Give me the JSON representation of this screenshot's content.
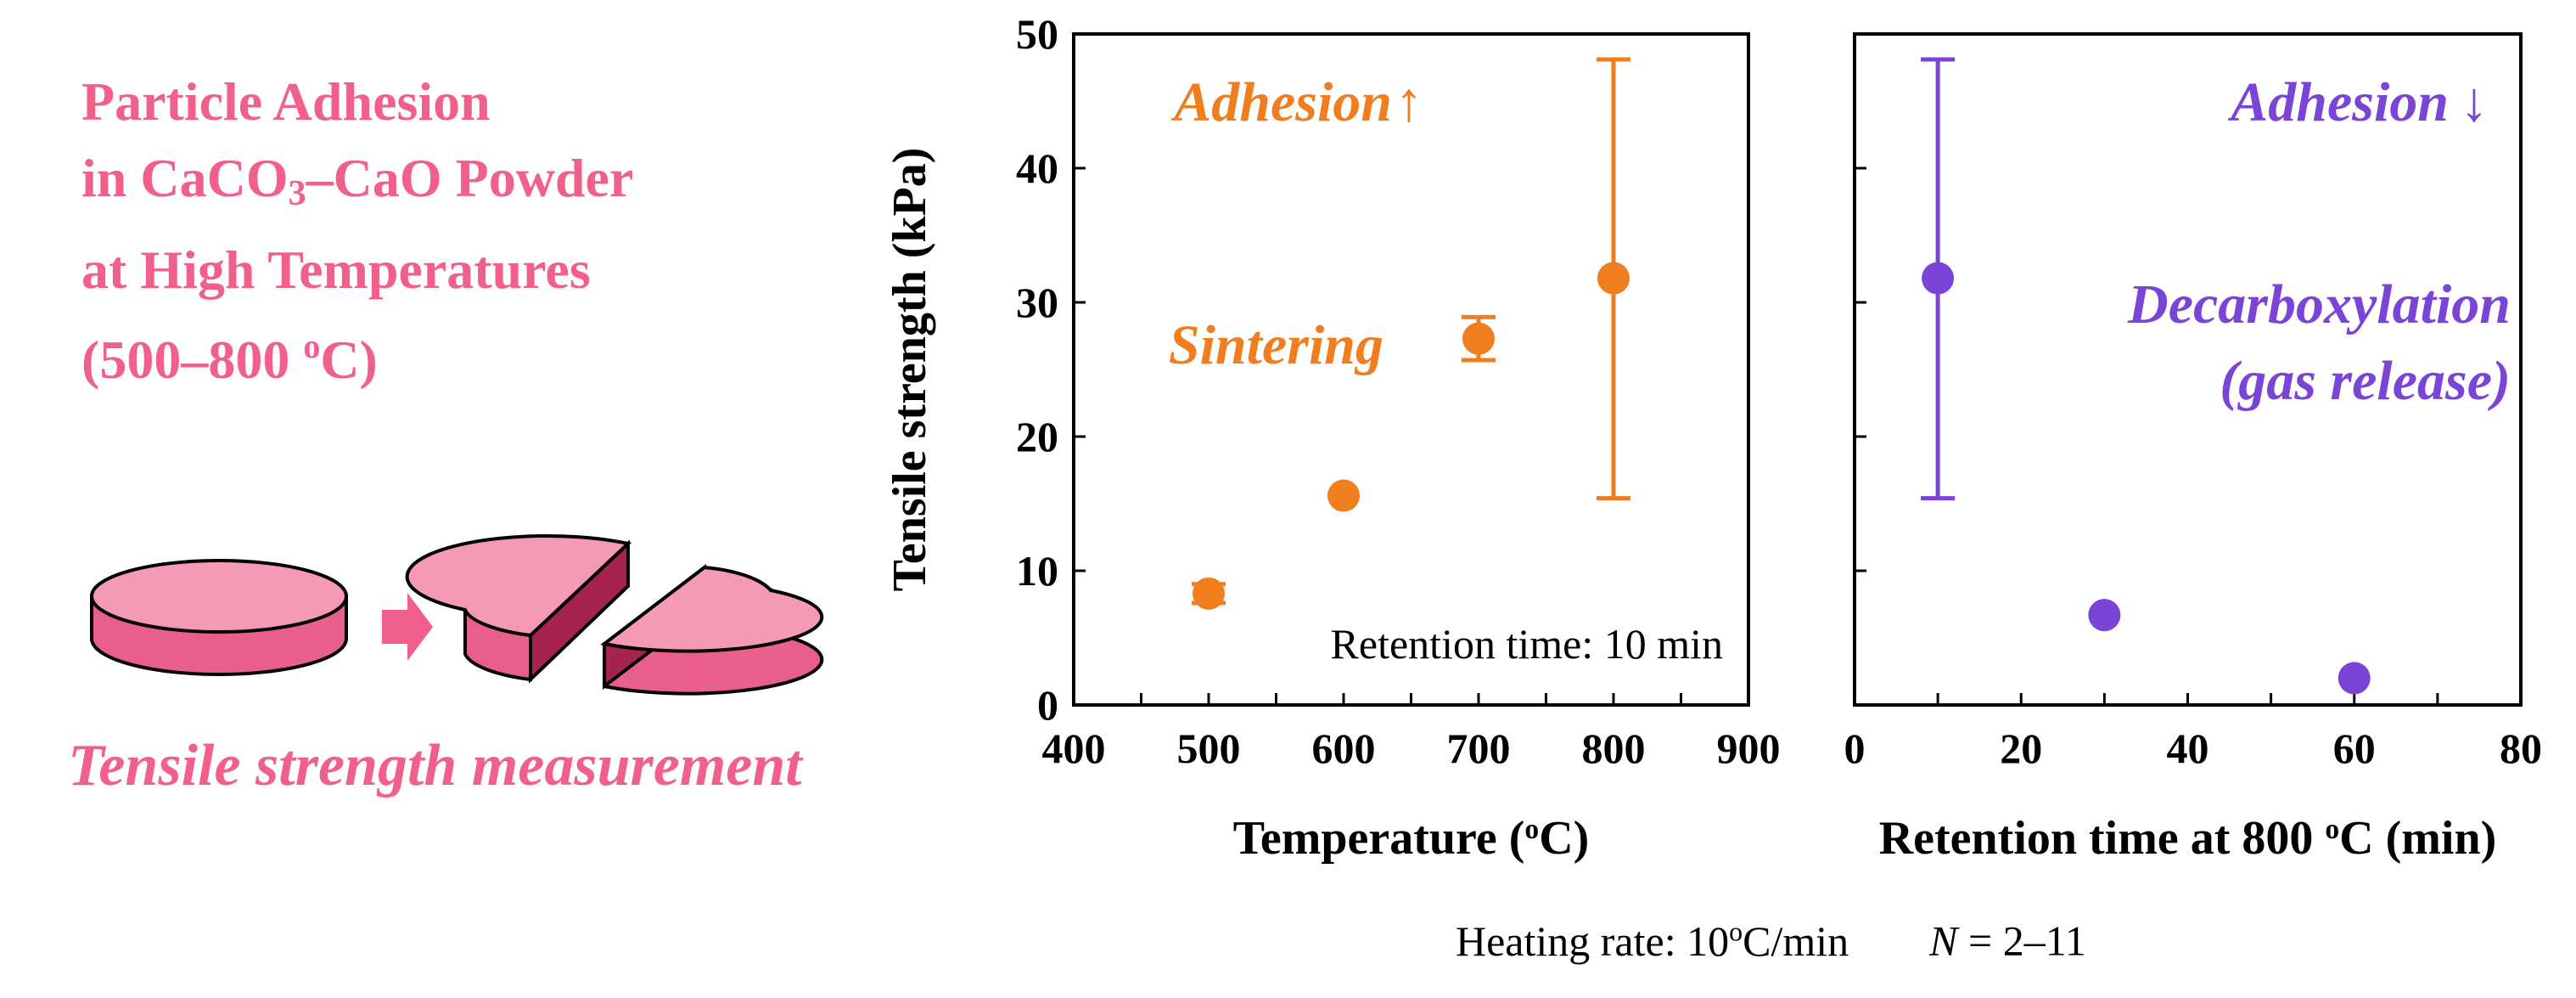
{
  "left_panel": {
    "title_line1": "Particle Adhesion",
    "title_line2_pre": "in CaCO",
    "title_line2_sub": "3",
    "title_line2_post": "–CaO Powder",
    "title_line3": "at High Temperatures",
    "title_line4_pre": "(500–800 ",
    "title_line4_sup": "o",
    "title_line4_post": "C)",
    "caption": "Tensile strength measurement",
    "pellet_color": "#f49ab4",
    "pellet_side_color": "#e85f8c",
    "pellet_inner_color": "#a5234f",
    "arrow_color": "#f0608a"
  },
  "footnote": {
    "heating_rate": "Heating rate: 10oC/min",
    "n_label": "N",
    "n_value": " = 2–11"
  },
  "chart_data": [
    {
      "type": "scatter",
      "xlabel": "Temperature (oC)",
      "ylabel": "Tensile strength (kPa)",
      "xlim": [
        400,
        900
      ],
      "ylim": [
        0,
        50
      ],
      "xticks": [
        "400",
        "500",
        "600",
        "700",
        "800",
        "900"
      ],
      "yticks": [
        "0",
        "10",
        "20",
        "30",
        "40",
        "50"
      ],
      "color": "#f07d1e",
      "series": [
        {
          "points": [
            {
              "x": 500,
              "y": 8.3,
              "err_low": 7.6,
              "err_high": 9.0
            },
            {
              "x": 600,
              "y": 15.6,
              "err_low": 15.6,
              "err_high": 15.6
            },
            {
              "x": 700,
              "y": 27.3,
              "err_low": 25.7,
              "err_high": 28.9
            },
            {
              "x": 800,
              "y": 31.8,
              "err_low": 15.4,
              "err_high": 48.1
            }
          ]
        }
      ],
      "annotations": {
        "adhesion": "Adhesion",
        "adhesion_arrow": "↑",
        "sintering": "Sintering",
        "retention": "Retention time: 10 min"
      }
    },
    {
      "type": "scatter",
      "xlabel": "Retention time at 800 oC (min)",
      "ylabel": "",
      "xlim": [
        0,
        80
      ],
      "ylim": [
        0,
        50
      ],
      "xticks": [
        "0",
        "20",
        "40",
        "60",
        "80"
      ],
      "color": "#7a45d6",
      "series": [
        {
          "points": [
            {
              "x": 10,
              "y": 31.8,
              "err_low": 15.4,
              "err_high": 48.1
            },
            {
              "x": 30,
              "y": 6.7,
              "err_low": 6.7,
              "err_high": 6.7
            },
            {
              "x": 60,
              "y": 2.0,
              "err_low": 2.0,
              "err_high": 2.0
            }
          ]
        }
      ],
      "annotations": {
        "adhesion": "Adhesion",
        "adhesion_arrow": "↓",
        "decarb_line1": "Decarboxylation",
        "decarb_line2": "(gas release)"
      }
    }
  ]
}
